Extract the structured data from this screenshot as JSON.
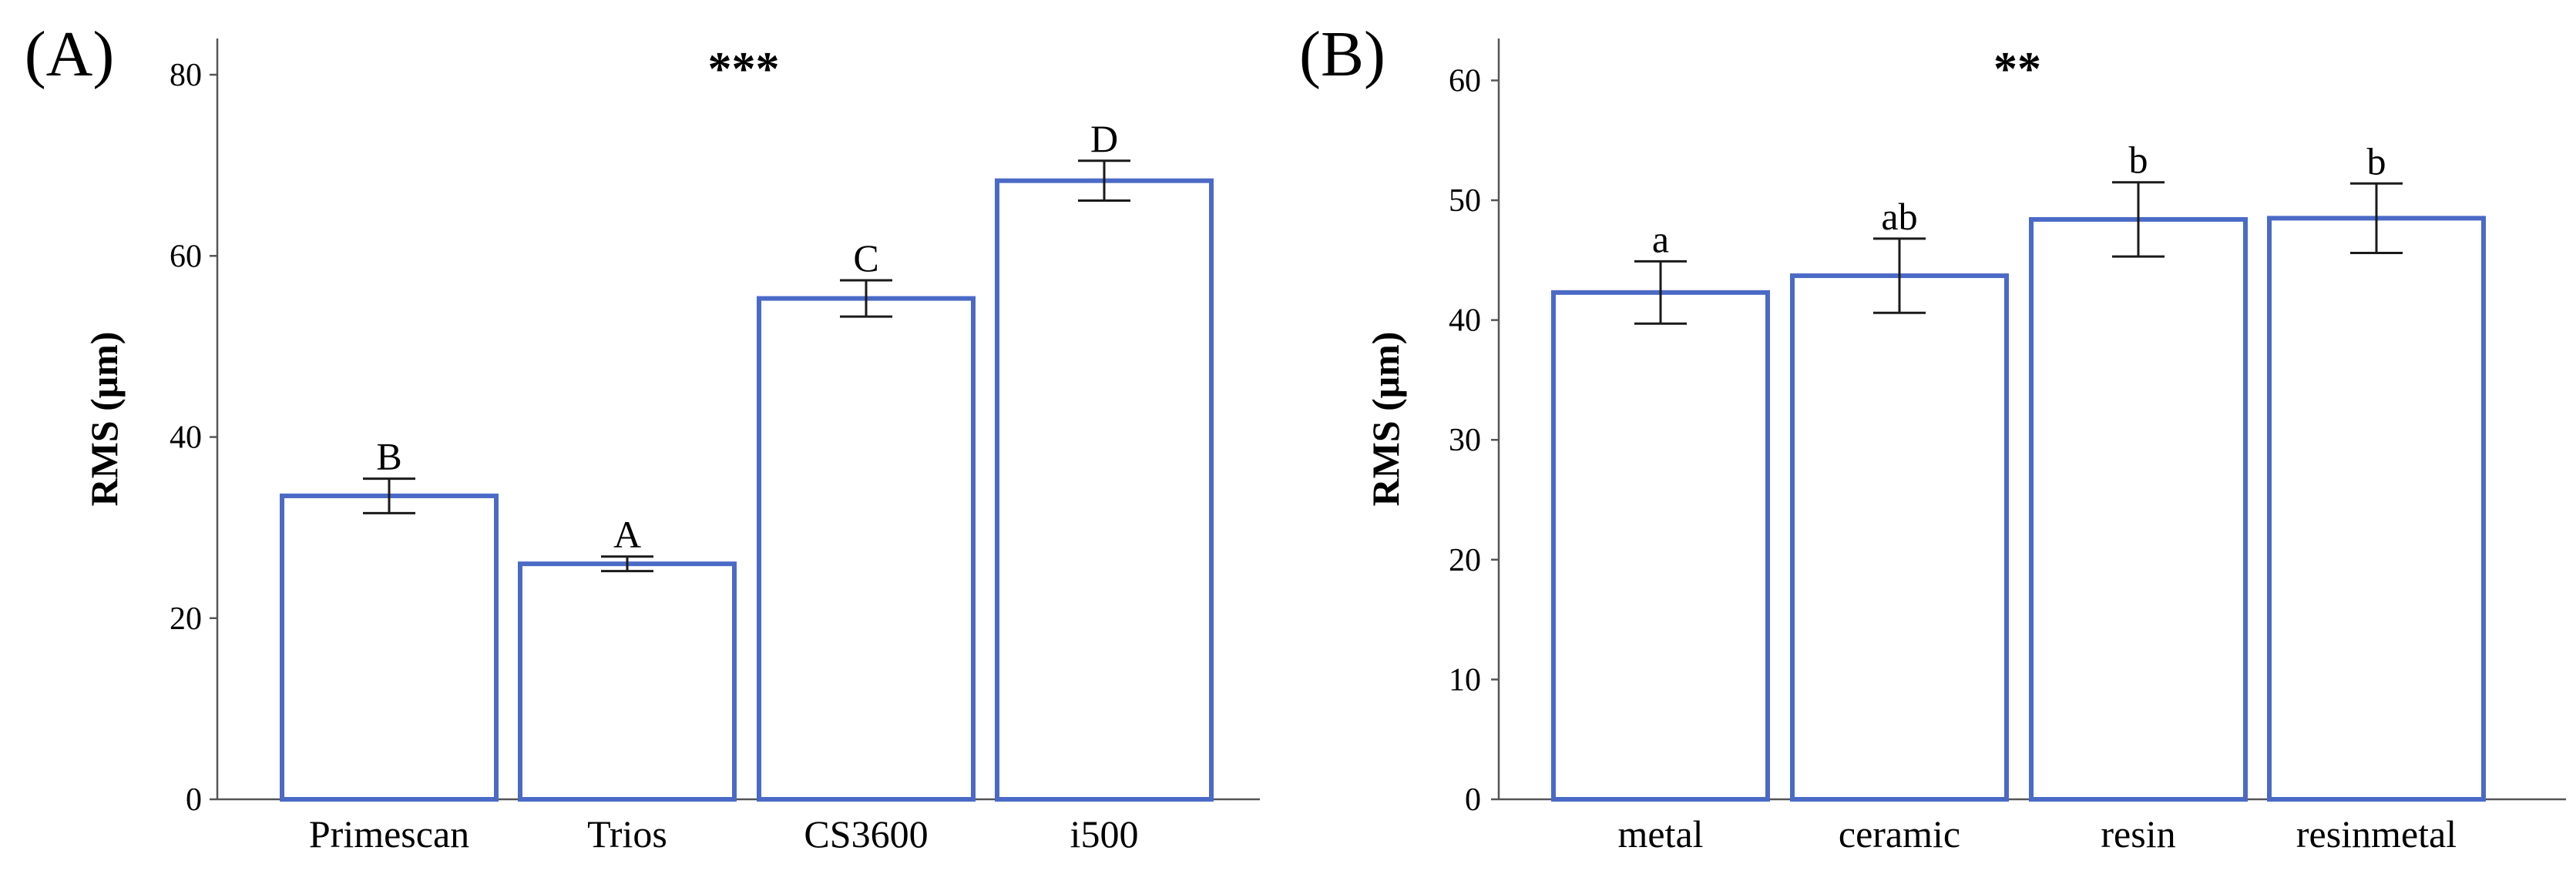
{
  "colors": {
    "bar_stroke": "#4A6AC6",
    "bar_fill": "#ffffff",
    "axis": "#555555",
    "errorbar": "#1a1a1a"
  },
  "chart_data": [
    {
      "type": "bar",
      "panel_label": "(A)",
      "significance": "***",
      "ylabel": "RMS (μm)",
      "xlabel": "",
      "ylim": [
        0,
        84
      ],
      "yticks": [
        0,
        20,
        40,
        60,
        80
      ],
      "categories": [
        "Primescan",
        "Trios",
        "CS3600",
        "i500"
      ],
      "values": [
        33.5,
        26,
        55.3,
        68.3
      ],
      "errors": [
        1.9,
        0.8,
        2.0,
        2.2
      ],
      "group_letters": [
        "B",
        "A",
        "C",
        "D"
      ]
    },
    {
      "type": "bar",
      "panel_label": "(B)",
      "significance": "**",
      "ylabel": "RMS (μm)",
      "xlabel": "",
      "ylim": [
        0,
        63.5
      ],
      "yticks": [
        0,
        10,
        20,
        30,
        40,
        50,
        60
      ],
      "categories": [
        "metal",
        "ceramic",
        "resin",
        "resinmetal"
      ],
      "values": [
        42.3,
        43.7,
        48.4,
        48.5
      ],
      "errors": [
        2.6,
        3.1,
        3.1,
        2.9
      ],
      "group_letters": [
        "a",
        "ab",
        "b",
        "b"
      ]
    }
  ]
}
